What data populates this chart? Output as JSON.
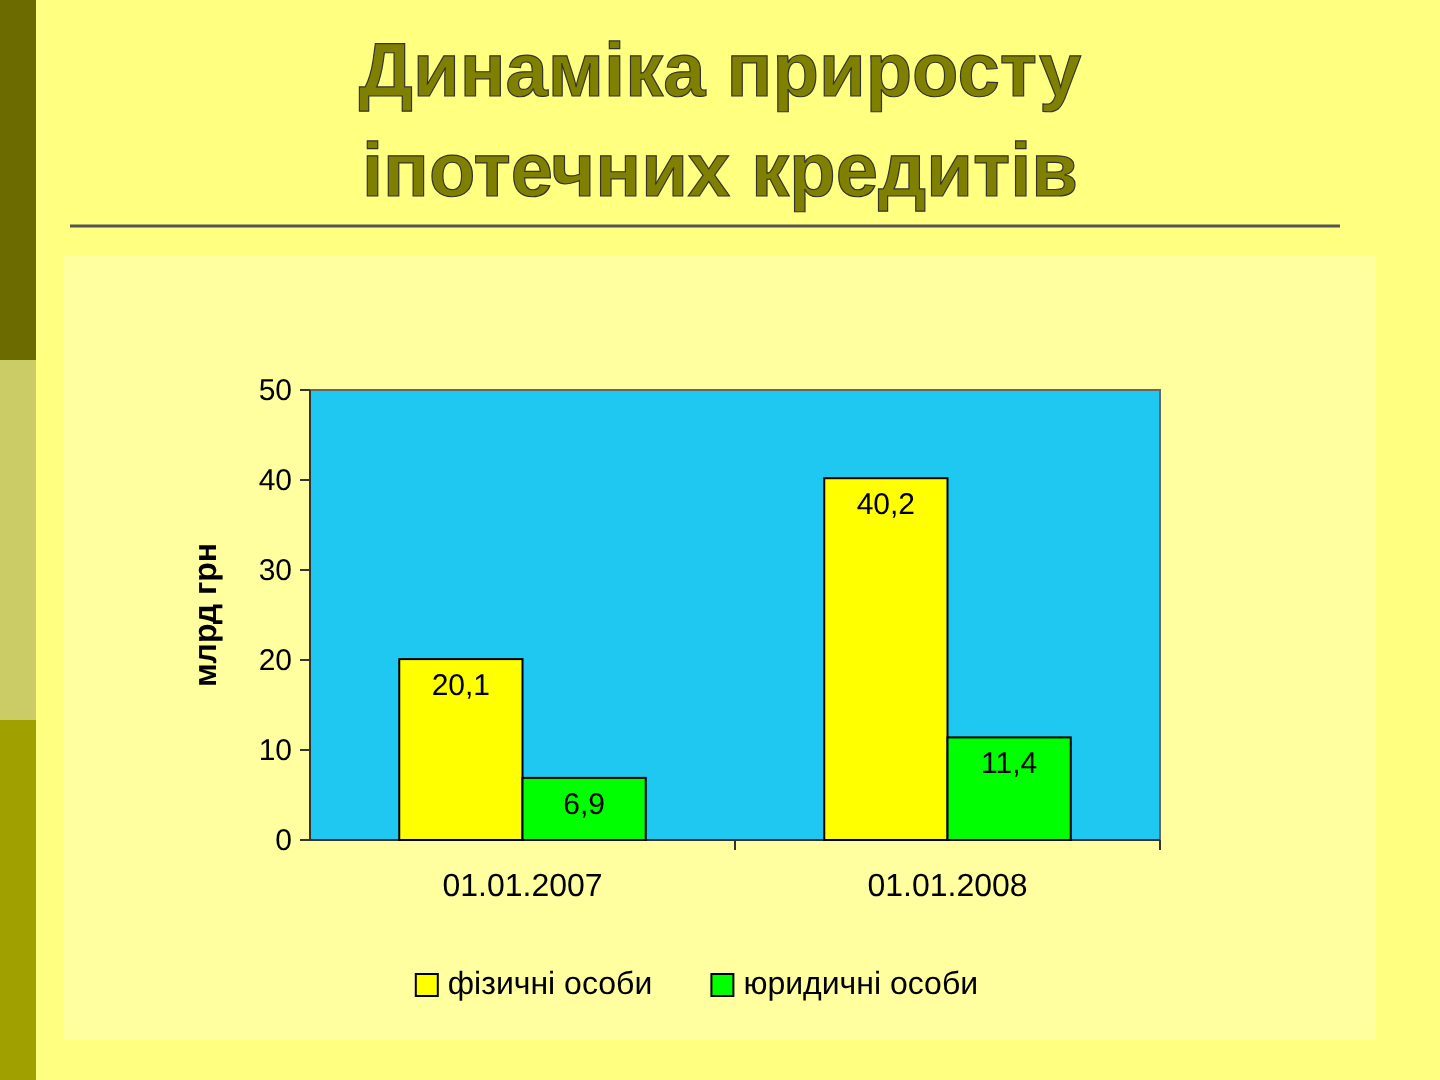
{
  "chart_data": {
    "type": "bar",
    "title": "Динаміка приросту іпотечних кредитів",
    "ylabel": "млрд грн",
    "categories": [
      "01.01.2007",
      "01.01.2008"
    ],
    "series": [
      {
        "name": "фізичні особи",
        "color": "#ffff00",
        "values": [
          20.1,
          40.2
        ],
        "value_labels": [
          "20,1",
          "40,2"
        ]
      },
      {
        "name": "юридичні особи",
        "color": "#00ff00",
        "values": [
          6.9,
          11.4
        ],
        "value_labels": [
          "6,9",
          "11,4"
        ]
      }
    ],
    "ylim": [
      0,
      50
    ],
    "yticks": [
      0,
      10,
      20,
      30,
      40,
      50
    ],
    "legend": "bottom"
  }
}
